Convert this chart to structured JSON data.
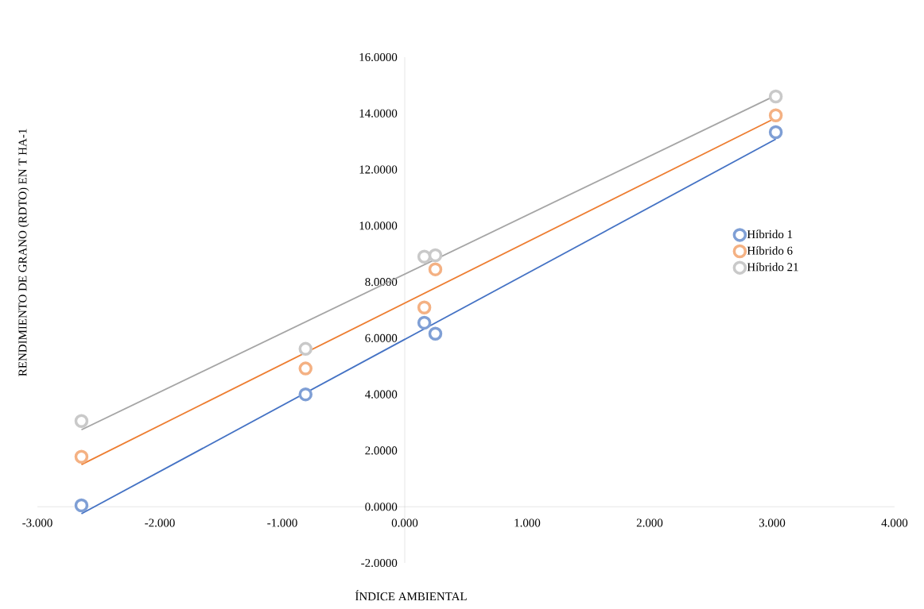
{
  "chart_data": {
    "type": "scatter",
    "xlabel": "ÍNDICE AMBIENTAL",
    "ylabel": "RENDIMIENTO DE GRANO (RDTO) EN T HA-1",
    "xlim": [
      -3,
      4
    ],
    "ylim": [
      -2,
      16
    ],
    "xticks": [
      {
        "value": -3,
        "label": "-3.000"
      },
      {
        "value": -2,
        "label": "-2.000"
      },
      {
        "value": -1,
        "label": "-1.000"
      },
      {
        "value": 0,
        "label": "0.000"
      },
      {
        "value": 1,
        "label": "1.000"
      },
      {
        "value": 2,
        "label": "2.000"
      },
      {
        "value": 3,
        "label": "3.000"
      },
      {
        "value": 4,
        "label": "4.000"
      }
    ],
    "yticks": [
      {
        "value": -2,
        "label": "-2.0000"
      },
      {
        "value": 0,
        "label": "0.0000"
      },
      {
        "value": 2,
        "label": "2.0000"
      },
      {
        "value": 4,
        "label": "4.0000"
      },
      {
        "value": 6,
        "label": "6.0000"
      },
      {
        "value": 8,
        "label": "8.0000"
      },
      {
        "value": 10,
        "label": "10.0000"
      },
      {
        "value": 12,
        "label": "12.0000"
      },
      {
        "value": 14,
        "label": "14.0000"
      },
      {
        "value": 16,
        "label": "16.0000"
      }
    ],
    "grid": false,
    "legend": "right",
    "series": [
      {
        "name": "Híbrido 1",
        "marker": "circle",
        "color": "#7f9fd5",
        "x": [
          -2.64,
          -0.81,
          0.16,
          0.25,
          3.03
        ],
        "values": [
          0.05,
          4.0,
          6.55,
          6.16,
          13.33
        ]
      },
      {
        "name": "Híbrido 6",
        "marker": "circle",
        "color": "#f4b183",
        "x": [
          -2.64,
          -0.81,
          0.16,
          0.25,
          3.03
        ],
        "values": [
          1.78,
          4.92,
          7.09,
          8.45,
          13.93
        ]
      },
      {
        "name": "Híbrido 21",
        "marker": "circle",
        "color": "#c9c9c9",
        "x": [
          -2.64,
          -0.81,
          0.16,
          0.25,
          3.03
        ],
        "values": [
          3.05,
          5.62,
          8.9,
          8.95,
          14.6
        ]
      },
      {
        "type": "line",
        "color": "#4472c4",
        "x": [
          -2.64,
          3.03
        ],
        "values": [
          -0.25,
          13.08
        ]
      },
      {
        "type": "line",
        "color": "#ed7d31",
        "x": [
          -2.64,
          3.03
        ],
        "values": [
          1.5,
          13.84
        ]
      },
      {
        "type": "line",
        "color": "#a5a5a5",
        "x": [
          -2.64,
          3.03
        ],
        "values": [
          2.74,
          14.64
        ]
      }
    ]
  }
}
